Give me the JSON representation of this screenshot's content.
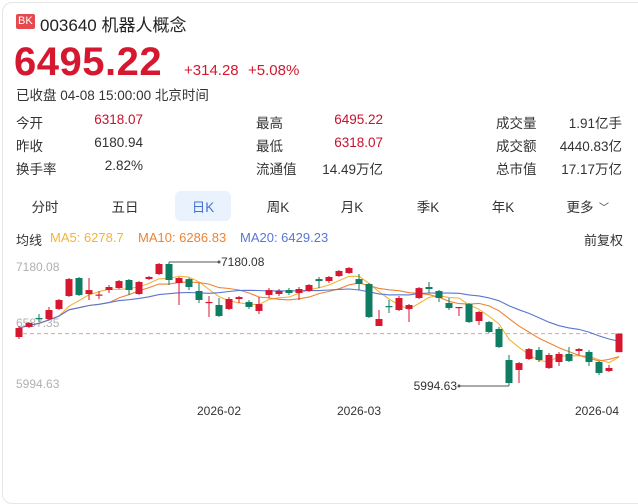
{
  "header": {
    "badge": "BK",
    "code": "003640",
    "name": "机器人概念",
    "price": "6495.22",
    "change": "+314.28",
    "change_pct": "+5.08%",
    "status_time": "已收盘 04-08 15:00:00 北京时间"
  },
  "stats": [
    {
      "label": "今开",
      "value": "6318.07",
      "red": true
    },
    {
      "label": "最高",
      "value": "6495.22",
      "red": true
    },
    {
      "label": "成交量",
      "value": "1.91亿手",
      "red": false
    },
    {
      "label": "昨收",
      "value": "6180.94",
      "red": false
    },
    {
      "label": "最低",
      "value": "6318.07",
      "red": true
    },
    {
      "label": "成交额",
      "value": "4440.83亿",
      "red": false
    },
    {
      "label": "换手率",
      "value": "2.82%",
      "red": false
    },
    {
      "label": "流通值",
      "value": "14.49万亿",
      "red": false
    },
    {
      "label": "总市值",
      "value": "17.17万亿",
      "red": false
    }
  ],
  "tabs": [
    {
      "label": "分时"
    },
    {
      "label": "五日"
    },
    {
      "label": "日K",
      "selected": true
    },
    {
      "label": "周K"
    },
    {
      "label": "月K"
    },
    {
      "label": "季K"
    },
    {
      "label": "年K"
    },
    {
      "label": "更多"
    }
  ],
  "ma_bar": {
    "label": "均线",
    "ma5": "MA5: 6278.7",
    "ma10": "MA10: 6286.83",
    "ma20": "MA20: 6429.23",
    "adjust": "前复权"
  },
  "colors": {
    "up": "#d5182f",
    "down": "#0f7d62",
    "ma5": "#f1b43c",
    "ma10": "#ec8434",
    "ma20": "#5a76d2",
    "dash": "#f09a9a"
  },
  "chart_data": {
    "type": "candlestick",
    "y_labels": [
      "7180.08",
      "6587.35",
      "5994.63"
    ],
    "ylim": [
      5994.63,
      7180.08
    ],
    "x_labels": [
      {
        "label": "2026-02",
        "index": 20
      },
      {
        "label": "2026-03",
        "index": 34
      },
      {
        "label": "2026-04",
        "index": 58
      }
    ],
    "max_label": "7180.08",
    "min_label": "5994.63",
    "max_index": 15,
    "min_index": 49,
    "last_close": 6495.22,
    "ohlc": [
      [
        6463,
        6549,
        6568,
        6444
      ],
      [
        6559,
        6597,
        6606,
        6549
      ],
      [
        6645,
        6635,
        6683,
        6606
      ],
      [
        6635,
        6721,
        6750,
        6626
      ],
      [
        6731,
        6817,
        6826,
        6721
      ],
      [
        6855,
        7017,
        7027,
        6845
      ],
      [
        7027,
        6865,
        7037,
        6855
      ],
      [
        6874,
        6912,
        7027,
        6817
      ],
      [
        6860,
        6869,
        6903,
        6826
      ],
      [
        6912,
        6941,
        6960,
        6884
      ],
      [
        6931,
        6998,
        7008,
        6922
      ],
      [
        7008,
        6912,
        7017,
        6865
      ],
      [
        6874,
        6989,
        6998,
        6865
      ],
      [
        7017,
        7037,
        7046,
        7008
      ],
      [
        7065,
        7161,
        7170,
        7056
      ],
      [
        7161,
        7008,
        7180.08,
        6960
      ],
      [
        6979,
        7027,
        7037,
        6769
      ],
      [
        7017,
        6941,
        7027,
        6912
      ],
      [
        6903,
        6817,
        6979,
        6788
      ],
      [
        6788,
        6798,
        6855,
        6654
      ],
      [
        6769,
        6664,
        6836,
        6654
      ],
      [
        6731,
        6826,
        6845,
        6721
      ],
      [
        6826,
        6845,
        6855,
        6788
      ],
      [
        6798,
        6750,
        6817,
        6731
      ],
      [
        6712,
        6778,
        6845,
        6683
      ],
      [
        6865,
        6912,
        6931,
        6836
      ],
      [
        6874,
        6903,
        6922,
        6855
      ],
      [
        6912,
        6884,
        6931,
        6865
      ],
      [
        6884,
        6922,
        6941,
        6817
      ],
      [
        6903,
        6960,
        6970,
        6893
      ],
      [
        7017,
        6998,
        7037,
        6931
      ],
      [
        6998,
        7037,
        7046,
        6979
      ],
      [
        7046,
        7094,
        7104,
        7037
      ],
      [
        7075,
        7123,
        7132,
        7065
      ],
      [
        7017,
        6970,
        7065,
        6912
      ],
      [
        6970,
        6654,
        6979,
        6645
      ],
      [
        6568,
        6635,
        6721,
        6568
      ],
      [
        6759,
        6750,
        6817,
        6692
      ],
      [
        6721,
        6836,
        6855,
        6712
      ],
      [
        6731,
        6769,
        6779,
        6606
      ],
      [
        6836,
        6931,
        6941,
        6826
      ],
      [
        6941,
        6922,
        6989,
        6884
      ],
      [
        6903,
        6836,
        6912,
        6798
      ],
      [
        6788,
        6740,
        6836,
        6721
      ],
      [
        6740,
        6750,
        6750,
        6664
      ],
      [
        6778,
        6606,
        6788,
        6597
      ],
      [
        6616,
        6702,
        6712,
        6578
      ],
      [
        6606,
        6511,
        6616,
        6501
      ],
      [
        6540,
        6367,
        6559,
        6358
      ],
      [
        6243,
        6023,
        6291,
        5994.63
      ],
      [
        6148,
        6214,
        6224,
        6023
      ],
      [
        6253,
        6348,
        6358,
        6243
      ],
      [
        6339,
        6243,
        6367,
        6224
      ],
      [
        6167,
        6291,
        6310,
        6157
      ],
      [
        6224,
        6301,
        6320,
        6186
      ],
      [
        6301,
        6234,
        6367,
        6224
      ],
      [
        6329,
        6348,
        6358,
        6291
      ],
      [
        6320,
        6224,
        6339,
        6186
      ],
      [
        6224,
        6119,
        6234,
        6100
      ],
      [
        6138,
        6167,
        6196,
        6129
      ],
      [
        6318.07,
        6495.22,
        6495.22,
        6318.07
      ]
    ]
  }
}
